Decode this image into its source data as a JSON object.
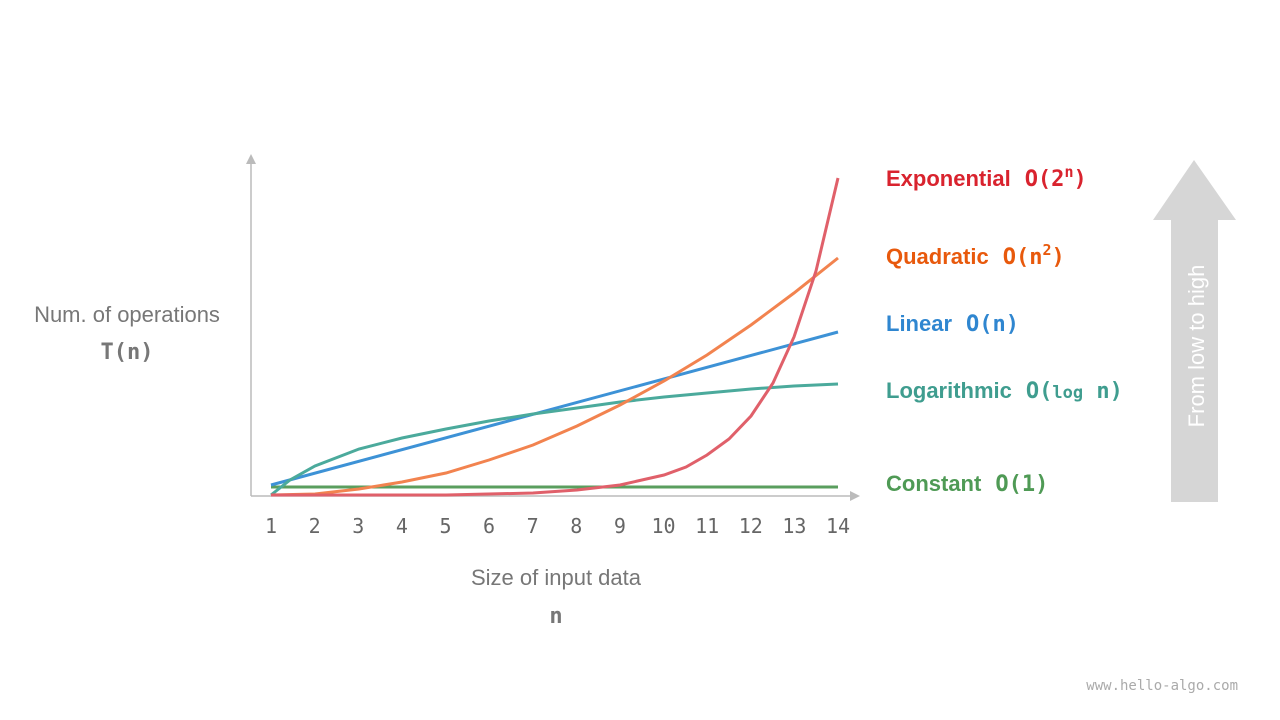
{
  "y_axis": {
    "label": "Num. of operations",
    "symbol": "T(n)"
  },
  "x_axis": {
    "label": "Size of input data",
    "symbol": "n",
    "ticks": [
      1,
      2,
      3,
      4,
      5,
      6,
      7,
      8,
      9,
      10,
      11,
      12,
      13,
      14
    ]
  },
  "curves": [
    {
      "name": "Exponential",
      "notation": [
        "O(2",
        "n",
        ")"
      ]
    },
    {
      "name": "Quadratic",
      "notation": [
        "O(n",
        "2",
        ")"
      ]
    },
    {
      "name": "Linear",
      "notation": [
        "O(n)"
      ]
    },
    {
      "name": "Logarithmic",
      "notation": [
        "O(",
        "log",
        " n)"
      ]
    },
    {
      "name": "Constant",
      "notation": [
        "O(1)"
      ]
    }
  ],
  "arrow_label": "From low to high",
  "watermark": "www.hello-algo.com"
}
